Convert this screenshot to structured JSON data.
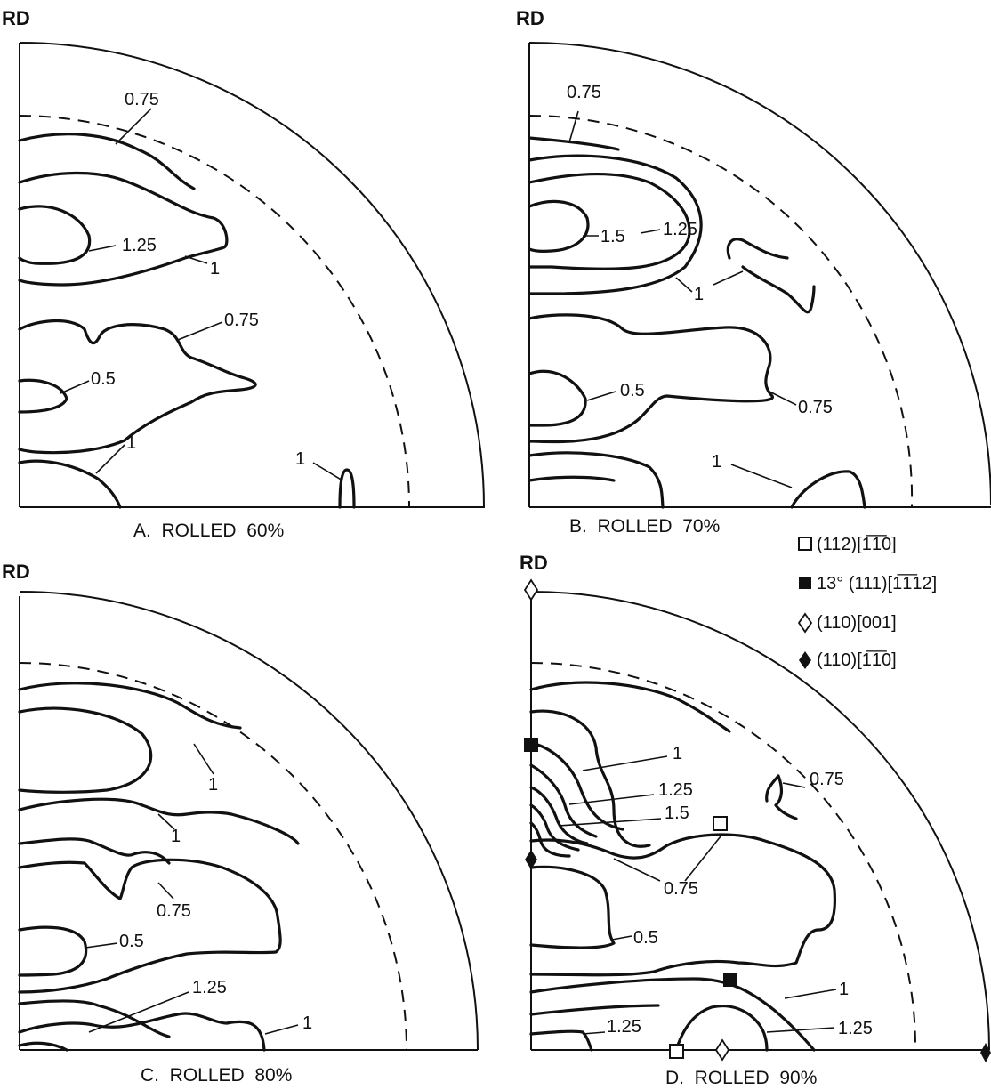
{
  "panels": [
    {
      "id": "A",
      "axis_label": "RD",
      "caption": "A.  ROLLED  60%",
      "contour_labels": [
        "0.75",
        "1.25",
        "1",
        "0.75",
        "0.5",
        "1",
        "1"
      ]
    },
    {
      "id": "B",
      "axis_label": "RD",
      "caption": "B.  ROLLED  70%",
      "contour_labels": [
        "0.75",
        "1.5",
        "1.25",
        "1",
        "0.5",
        "0.75",
        "1"
      ]
    },
    {
      "id": "C",
      "axis_label": "RD",
      "caption": "C.  ROLLED  80%",
      "contour_labels": [
        "1",
        "1",
        "0.75",
        "0.5",
        "1.25",
        "1"
      ]
    },
    {
      "id": "D",
      "axis_label": "RD",
      "caption": "D.  ROLLED  90%",
      "contour_labels": [
        "1",
        "1.25",
        "1.5",
        "0.75",
        "0.75",
        "0.5",
        "1",
        "1.25",
        "1.25"
      ]
    }
  ],
  "legend": [
    {
      "symbol": "open-square",
      "text": "(112)[1̅1̅0]"
    },
    {
      "symbol": "filled-square",
      "text": "13° (111)[1̅1̅12]"
    },
    {
      "symbol": "open-diamond",
      "text": "(110)[001]"
    },
    {
      "symbol": "filled-diamond",
      "text": "(110)[1̅1̅0]"
    }
  ]
}
